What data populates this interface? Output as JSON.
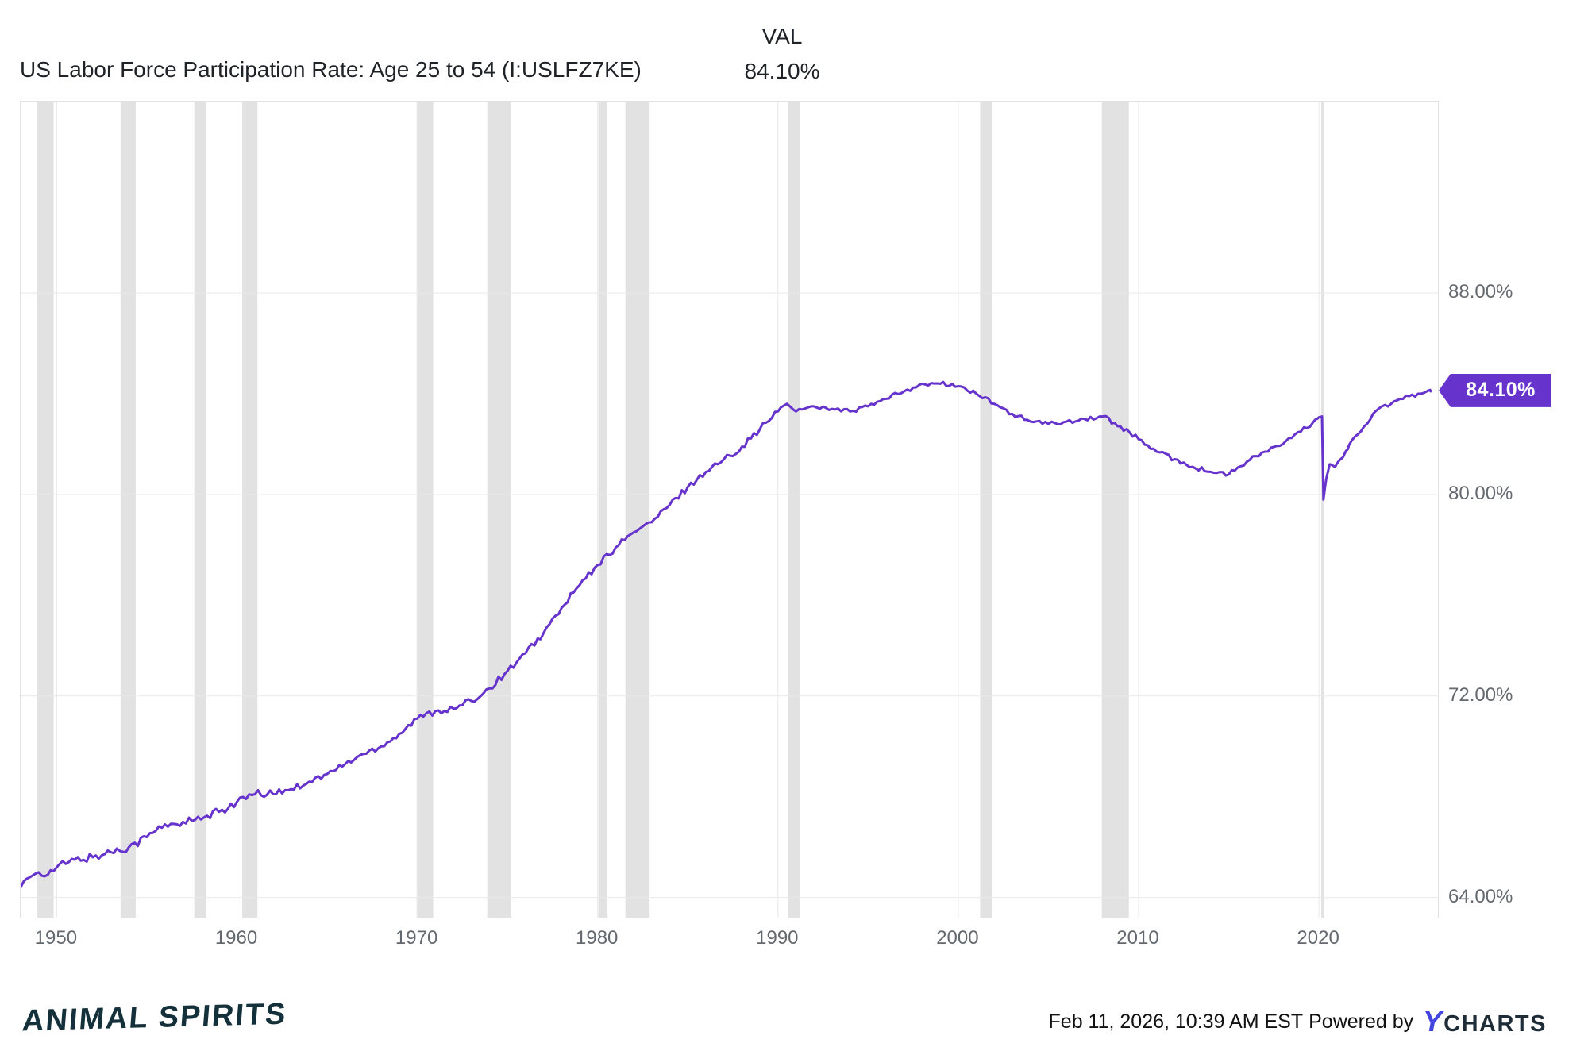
{
  "header": {
    "title": "US Labor Force Participation Rate: Age 25 to 54 (I:USLFZ7KE)",
    "val_label": "VAL",
    "val_value": "84.10%"
  },
  "chart_data": {
    "type": "line",
    "title": "US Labor Force Participation Rate: Age 25 to 54 (I:USLFZ7KE)",
    "series_name": "US Labor Force Participation Rate: Age 25 to 54",
    "unit": "%",
    "xlabel": "",
    "ylabel": "",
    "x_domain": [
      1948,
      2026.6
    ],
    "y_domain": [
      63.2,
      95.6
    ],
    "x_ticks": [
      1950,
      1960,
      1970,
      1980,
      1990,
      2000,
      2010,
      2020
    ],
    "y_ticks": [
      64,
      72,
      80,
      88
    ],
    "y_tick_labels": [
      "64.00%",
      "72.00%",
      "80.00%",
      "88.00%"
    ],
    "grid": true,
    "grid_color": "#e9e9e9",
    "line_color": "#6633cc",
    "recession_band_color": "#e2e2e2",
    "last_value": 84.1,
    "last_value_label": "84.10%",
    "recessions": [
      [
        1948.92,
        1949.83
      ],
      [
        1953.54,
        1954.38
      ],
      [
        1957.63,
        1958.29
      ],
      [
        1960.29,
        1961.13
      ],
      [
        1969.96,
        1970.88
      ],
      [
        1973.88,
        1975.21
      ],
      [
        1980.04,
        1980.54
      ],
      [
        1981.54,
        1982.88
      ],
      [
        1990.54,
        1991.21
      ],
      [
        2001.21,
        2001.88
      ],
      [
        2007.96,
        2009.46
      ],
      [
        2020.13,
        2020.29
      ]
    ],
    "points": [
      [
        1948,
        64.4
      ],
      [
        1948.5,
        64.8
      ],
      [
        1949,
        65.0
      ],
      [
        1949.5,
        64.9
      ],
      [
        1950,
        65.2
      ],
      [
        1951,
        65.5
      ],
      [
        1952,
        65.6
      ],
      [
        1953,
        65.8
      ],
      [
        1954,
        66.0
      ],
      [
        1955,
        66.4
      ],
      [
        1956,
        66.9
      ],
      [
        1957,
        67.0
      ],
      [
        1958,
        67.1
      ],
      [
        1959,
        67.4
      ],
      [
        1960,
        67.8
      ],
      [
        1961,
        68.1
      ],
      [
        1962,
        68.1
      ],
      [
        1963,
        68.3
      ],
      [
        1964,
        68.6
      ],
      [
        1965,
        68.9
      ],
      [
        1966,
        69.3
      ],
      [
        1967,
        69.7
      ],
      [
        1968,
        70.0
      ],
      [
        1969,
        70.5
      ],
      [
        1970,
        71.1
      ],
      [
        1971,
        71.4
      ],
      [
        1972,
        71.5
      ],
      [
        1973,
        71.8
      ],
      [
        1974,
        72.3
      ],
      [
        1975,
        73.0
      ],
      [
        1976,
        73.7
      ],
      [
        1977,
        74.5
      ],
      [
        1978,
        75.5
      ],
      [
        1979,
        76.4
      ],
      [
        1980,
        77.2
      ],
      [
        1981,
        77.9
      ],
      [
        1982,
        78.5
      ],
      [
        1983,
        78.9
      ],
      [
        1984,
        79.6
      ],
      [
        1985,
        80.3
      ],
      [
        1986,
        80.9
      ],
      [
        1987,
        81.4
      ],
      [
        1988,
        81.9
      ],
      [
        1989,
        82.6
      ],
      [
        1990,
        83.3
      ],
      [
        1990.5,
        83.6
      ],
      [
        1991,
        83.3
      ],
      [
        1992,
        83.5
      ],
      [
        1993,
        83.4
      ],
      [
        1994,
        83.3
      ],
      [
        1995,
        83.5
      ],
      [
        1996,
        83.8
      ],
      [
        1997,
        84.1
      ],
      [
        1998,
        84.4
      ],
      [
        1999,
        84.4
      ],
      [
        2000,
        84.3
      ],
      [
        2001,
        84.0
      ],
      [
        2002,
        83.6
      ],
      [
        2003,
        83.2
      ],
      [
        2004,
        82.9
      ],
      [
        2005,
        82.8
      ],
      [
        2006,
        82.9
      ],
      [
        2007,
        83.0
      ],
      [
        2008,
        83.1
      ],
      [
        2009,
        82.7
      ],
      [
        2010,
        82.2
      ],
      [
        2011,
        81.7
      ],
      [
        2012,
        81.4
      ],
      [
        2013,
        81.1
      ],
      [
        2014,
        80.9
      ],
      [
        2015,
        80.8
      ],
      [
        2016,
        81.3
      ],
      [
        2017,
        81.7
      ],
      [
        2018,
        82.0
      ],
      [
        2019,
        82.5
      ],
      [
        2019.9,
        83.0
      ],
      [
        2020.17,
        83.1
      ],
      [
        2020.25,
        79.8
      ],
      [
        2020.4,
        80.6
      ],
      [
        2020.6,
        81.2
      ],
      [
        2020.9,
        81.1
      ],
      [
        2021.2,
        81.4
      ],
      [
        2021.6,
        81.8
      ],
      [
        2022,
        82.3
      ],
      [
        2022.5,
        82.7
      ],
      [
        2023,
        83.2
      ],
      [
        2023.5,
        83.5
      ],
      [
        2024,
        83.6
      ],
      [
        2024.5,
        83.8
      ],
      [
        2025,
        83.9
      ],
      [
        2025.5,
        84.0
      ],
      [
        2026.2,
        84.1
      ]
    ]
  },
  "footer": {
    "timestamp": "Feb 11, 2026, 10:39 AM EST",
    "powered_by": "Powered by",
    "ycharts_y": "Y",
    "ycharts_rest": "CHARTS",
    "animal_spirits": "ANIMAL SPIRITS"
  }
}
